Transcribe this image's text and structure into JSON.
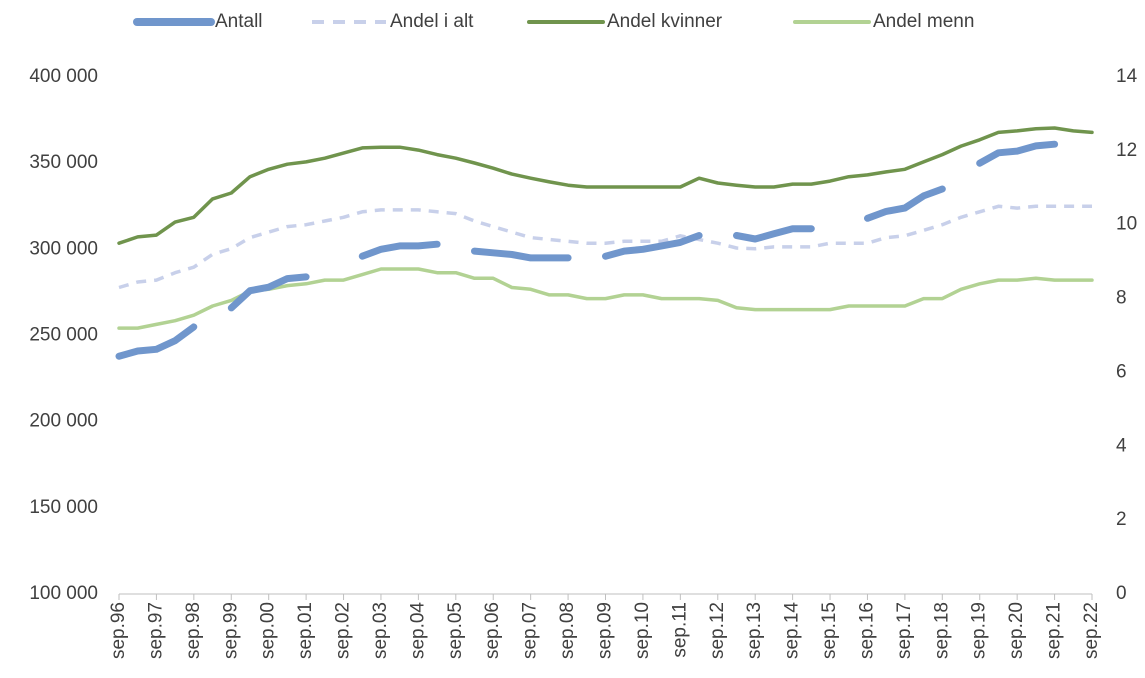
{
  "chart_data": {
    "type": "line",
    "categories": [
      "sep.96",
      null,
      "sep.97",
      null,
      "sep.98",
      null,
      "sep.99",
      null,
      "sep.00",
      null,
      "sep.01",
      null,
      "sep.02",
      null,
      "sep.03",
      null,
      "sep.04",
      null,
      "sep.05",
      null,
      "sep.06",
      null,
      "sep.07",
      null,
      "sep.08",
      null,
      "sep.09",
      null,
      "sep.10",
      null,
      "sep.11",
      null,
      "sep.12",
      null,
      "sep.13",
      null,
      "sep.14",
      null,
      "sep.15",
      null,
      "sep.16",
      null,
      "sep.17",
      null,
      "sep.18",
      null,
      "sep.19",
      null,
      "sep.20",
      null,
      "sep.21",
      null,
      "sep.22"
    ],
    "series": [
      {
        "name": "Antall",
        "color": "#7096cc",
        "axis": "y",
        "values": [
          238000,
          241000,
          242000,
          247000,
          255000,
          null,
          266000,
          276000,
          278000,
          283000,
          284000,
          null,
          null,
          296000,
          300000,
          302000,
          302000,
          303000,
          null,
          299000,
          298000,
          297000,
          295000,
          295000,
          295000,
          null,
          296000,
          299000,
          300000,
          302000,
          304000,
          308000,
          null,
          308000,
          306000,
          309000,
          312000,
          312000,
          null,
          null,
          318000,
          322000,
          324000,
          331000,
          335000,
          null,
          350000,
          356000,
          357000,
          360000,
          361000,
          null,
          null
        ]
      },
      {
        "name": "Andel i alt",
        "color": "#c8d0ea",
        "axis": "y2",
        "dashed": true,
        "values": [
          8.3,
          8.45,
          8.5,
          8.7,
          8.85,
          9.2,
          9.35,
          9.65,
          9.8,
          9.95,
          10.0,
          10.1,
          10.2,
          10.35,
          10.4,
          10.4,
          10.4,
          10.35,
          10.3,
          10.1,
          9.95,
          9.8,
          9.65,
          9.6,
          9.55,
          9.5,
          9.5,
          9.55,
          9.55,
          9.55,
          9.7,
          9.6,
          9.5,
          9.37,
          9.35,
          9.4,
          9.4,
          9.4,
          9.5,
          9.5,
          9.5,
          9.65,
          9.7,
          9.85,
          10.0,
          10.2,
          10.35,
          10.5,
          10.45,
          10.5,
          10.5,
          10.5,
          10.5
        ]
      },
      {
        "name": "Andel kvinner",
        "color": "#70944d",
        "axis": "y2",
        "values": [
          9.5,
          9.67,
          9.72,
          10.07,
          10.2,
          10.7,
          10.86,
          11.3,
          11.5,
          11.64,
          11.7,
          11.8,
          11.94,
          12.08,
          12.1,
          12.1,
          12.02,
          11.9,
          11.8,
          11.67,
          11.53,
          11.37,
          11.26,
          11.16,
          11.07,
          11.02,
          11.02,
          11.02,
          11.02,
          11.02,
          11.02,
          11.26,
          11.13,
          11.07,
          11.02,
          11.02,
          11.1,
          11.1,
          11.18,
          11.3,
          11.35,
          11.43,
          11.5,
          11.7,
          11.9,
          12.13,
          12.3,
          12.5,
          12.54,
          12.6,
          12.62,
          12.54,
          12.5
        ]
      },
      {
        "name": "Andel menn",
        "color": "#b2d293",
        "axis": "y2",
        "values": [
          7.2,
          7.2,
          7.3,
          7.4,
          7.55,
          7.8,
          7.95,
          8.2,
          8.25,
          8.35,
          8.4,
          8.5,
          8.5,
          8.65,
          8.8,
          8.8,
          8.8,
          8.7,
          8.7,
          8.55,
          8.55,
          8.3,
          8.25,
          8.1,
          8.1,
          8.0,
          8.0,
          8.1,
          8.1,
          8.0,
          8.0,
          8.0,
          7.95,
          7.75,
          7.7,
          7.7,
          7.7,
          7.7,
          7.7,
          7.8,
          7.8,
          7.8,
          7.8,
          8.0,
          8.0,
          8.25,
          8.4,
          8.5,
          8.5,
          8.55,
          8.5,
          8.5,
          8.5
        ]
      }
    ],
    "ylim": [
      100000,
      400000
    ],
    "yticks": [
      {
        "value": 100000,
        "label": "100 000"
      },
      {
        "value": 150000,
        "label": "150 000"
      },
      {
        "value": 200000,
        "label": "200 000"
      },
      {
        "value": 250000,
        "label": "250 000"
      },
      {
        "value": 300000,
        "label": "300 000"
      },
      {
        "value": 350000,
        "label": "350 000"
      },
      {
        "value": 400000,
        "label": "400 000"
      }
    ],
    "y2lim": [
      0,
      14
    ],
    "y2ticks": [
      0,
      2,
      4,
      6,
      8,
      10,
      12,
      14
    ],
    "grid": false,
    "legend": "top"
  }
}
